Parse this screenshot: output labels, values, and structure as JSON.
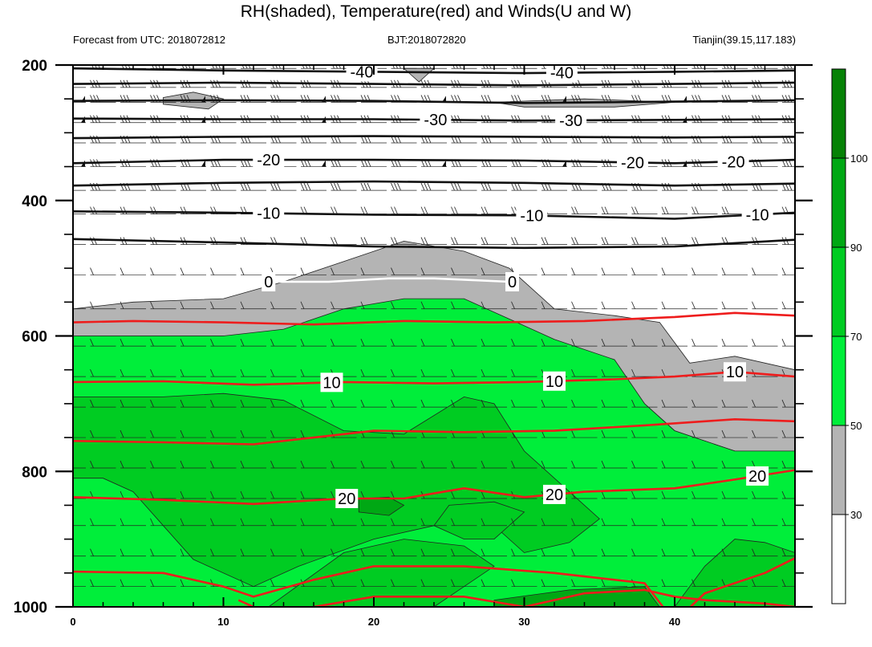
{
  "chart_data": {
    "type": "heatmap",
    "title": "RH(shaded), Temperature(red) and Winds(U and W)",
    "left_subtitle": "Forecast from UTC: 2018072812",
    "center_subtitle": "BJT:2018072820",
    "right_subtitle": "Tianjin(39.15,117.183)",
    "xlabel": "",
    "ylabel": "",
    "x_ticks": [
      0,
      10,
      20,
      30,
      40
    ],
    "xlim": [
      0,
      48
    ],
    "y_ticks": [
      200,
      400,
      600,
      800,
      1000
    ],
    "ylim": [
      200,
      1000
    ],
    "y_inverted": true,
    "colorbar": {
      "levels": [
        30,
        50,
        70,
        90,
        100
      ],
      "colors": [
        "#ffffff",
        "#b4b4b4",
        "#00ee3a",
        "#00cc22",
        "#00a814",
        "#068206"
      ]
    },
    "rh_regions": [
      {
        "level": "gray",
        "points": [
          [
            0,
            560
          ],
          [
            4,
            550
          ],
          [
            10,
            545
          ],
          [
            14,
            520
          ],
          [
            18,
            490
          ],
          [
            22,
            460
          ],
          [
            26,
            475
          ],
          [
            29,
            500
          ],
          [
            32,
            560
          ],
          [
            36,
            570
          ],
          [
            39,
            580
          ],
          [
            41,
            640
          ],
          [
            44,
            630
          ],
          [
            48,
            650
          ],
          [
            48,
            770
          ],
          [
            44,
            770
          ],
          [
            40,
            740
          ],
          [
            38,
            700
          ],
          [
            36,
            640
          ],
          [
            32,
            610
          ],
          [
            28,
            600
          ],
          [
            20,
            600
          ],
          [
            10,
            600
          ],
          [
            0,
            600
          ]
        ]
      },
      {
        "level": "gray",
        "points": [
          [
            6,
            248
          ],
          [
            8,
            240
          ],
          [
            10,
            250
          ],
          [
            9,
            265
          ],
          [
            6,
            258
          ]
        ]
      },
      {
        "level": "gray",
        "points": [
          [
            22,
            205
          ],
          [
            24,
            205
          ],
          [
            23,
            225
          ]
        ]
      },
      {
        "level": "gray",
        "points": [
          [
            28,
            255
          ],
          [
            34,
            250
          ],
          [
            40,
            255
          ],
          [
            36,
            262
          ],
          [
            30,
            262
          ]
        ]
      },
      {
        "level": "green1",
        "points": [
          [
            0,
            600
          ],
          [
            10,
            600
          ],
          [
            14,
            590
          ],
          [
            18,
            560
          ],
          [
            22,
            545
          ],
          [
            26,
            545
          ],
          [
            29,
            575
          ],
          [
            32,
            605
          ],
          [
            36,
            635
          ],
          [
            38,
            700
          ],
          [
            40,
            740
          ],
          [
            44,
            770
          ],
          [
            48,
            770
          ],
          [
            48,
            1000
          ],
          [
            0,
            1000
          ]
        ]
      },
      {
        "level": "green2",
        "points": [
          [
            0,
            690
          ],
          [
            6,
            690
          ],
          [
            10,
            685
          ],
          [
            14,
            695
          ],
          [
            18,
            740
          ],
          [
            22,
            745
          ],
          [
            26,
            690
          ],
          [
            28,
            700
          ],
          [
            30,
            770
          ],
          [
            33,
            830
          ],
          [
            35,
            870
          ],
          [
            33,
            905
          ],
          [
            30,
            920
          ],
          [
            28,
            880
          ],
          [
            24,
            880
          ],
          [
            20,
            900
          ],
          [
            15,
            940
          ],
          [
            12,
            970
          ],
          [
            8,
            930
          ],
          [
            6,
            880
          ],
          [
            4,
            830
          ],
          [
            2,
            810
          ],
          [
            0,
            810
          ]
        ]
      },
      {
        "level": "green2",
        "points": [
          [
            13,
            1000
          ],
          [
            18,
            920
          ],
          [
            22,
            900
          ],
          [
            26,
            910
          ],
          [
            28,
            940
          ],
          [
            26,
            970
          ],
          [
            24,
            1000
          ]
        ]
      },
      {
        "level": "green2",
        "points": [
          [
            40,
            1000
          ],
          [
            42,
            940
          ],
          [
            44,
            900
          ],
          [
            46,
            905
          ],
          [
            48,
            920
          ],
          [
            48,
            1000
          ]
        ]
      },
      {
        "level": "green2",
        "points": [
          [
            24,
            880
          ],
          [
            25,
            850
          ],
          [
            28,
            845
          ],
          [
            30,
            860
          ],
          [
            28,
            900
          ],
          [
            26,
            900
          ]
        ]
      },
      {
        "level": "green3",
        "points": [
          [
            19,
            840
          ],
          [
            21,
            838
          ],
          [
            22,
            850
          ],
          [
            21,
            865
          ],
          [
            19,
            860
          ]
        ]
      },
      {
        "level": "green3",
        "points": [
          [
            28,
            990
          ],
          [
            33,
            975
          ],
          [
            38,
            970
          ],
          [
            39,
            1000
          ],
          [
            28,
            1000
          ]
        ]
      }
    ],
    "temperature_isotherms": [
      {
        "color": "black",
        "label": "-40",
        "label_x": [
          19.2,
          32.5
        ],
        "points": [
          [
            0,
            205
          ],
          [
            10,
            208
          ],
          [
            20,
            210
          ],
          [
            30,
            212
          ],
          [
            40,
            210
          ],
          [
            48,
            208
          ]
        ]
      },
      {
        "color": "black",
        "label": "",
        "label_x": [],
        "points": [
          [
            0,
            228
          ],
          [
            10,
            226
          ],
          [
            20,
            228
          ],
          [
            30,
            230
          ],
          [
            40,
            228
          ],
          [
            48,
            226
          ]
        ]
      },
      {
        "color": "black",
        "label": "",
        "label_x": [],
        "points": [
          [
            0,
            253
          ],
          [
            10,
            252
          ],
          [
            20,
            253
          ],
          [
            30,
            256
          ],
          [
            40,
            254
          ],
          [
            48,
            252
          ]
        ]
      },
      {
        "color": "black",
        "label": "-30",
        "label_x": [
          24.1,
          33.1
        ],
        "points": [
          [
            0,
            279
          ],
          [
            10,
            280
          ],
          [
            20,
            280
          ],
          [
            30,
            282
          ],
          [
            40,
            281
          ],
          [
            48,
            280
          ]
        ]
      },
      {
        "color": "black",
        "label": "",
        "label_x": [],
        "points": [
          [
            0,
            308
          ],
          [
            10,
            306
          ],
          [
            20,
            305
          ],
          [
            30,
            306
          ],
          [
            40,
            307
          ],
          [
            48,
            306
          ]
        ]
      },
      {
        "color": "black",
        "label": "-20",
        "label_x": [
          13.0,
          37.2,
          43.9
        ],
        "points": [
          [
            0,
            345
          ],
          [
            10,
            340
          ],
          [
            20,
            340
          ],
          [
            30,
            341
          ],
          [
            40,
            345
          ],
          [
            48,
            340
          ]
        ]
      },
      {
        "color": "black",
        "label": "",
        "label_x": [],
        "points": [
          [
            0,
            378
          ],
          [
            10,
            374
          ],
          [
            20,
            372
          ],
          [
            30,
            374
          ],
          [
            40,
            378
          ],
          [
            48,
            375
          ]
        ]
      },
      {
        "color": "black",
        "label": "-10",
        "label_x": [
          13.0,
          30.5,
          45.5
        ],
        "points": [
          [
            0,
            416
          ],
          [
            10,
            418
          ],
          [
            20,
            421
          ],
          [
            30,
            422
          ],
          [
            40,
            427
          ],
          [
            48,
            418
          ]
        ]
      },
      {
        "color": "black",
        "label": "",
        "label_x": [],
        "points": [
          [
            0,
            457
          ],
          [
            10,
            462
          ],
          [
            20,
            468
          ],
          [
            30,
            470
          ],
          [
            40,
            468
          ],
          [
            48,
            458
          ]
        ]
      },
      {
        "color": "white",
        "label": "0",
        "label_x": [
          13.0,
          29.2
        ],
        "points": [
          [
            13,
            520
          ],
          [
            17,
            520
          ],
          [
            21,
            515
          ],
          [
            24,
            515
          ],
          [
            29,
            520
          ]
        ]
      },
      {
        "color": "red",
        "label": "",
        "label_x": [],
        "points": [
          [
            0,
            580
          ],
          [
            4,
            578
          ],
          [
            10,
            580
          ],
          [
            16,
            583
          ],
          [
            22,
            578
          ],
          [
            28,
            580
          ],
          [
            34,
            578
          ],
          [
            40,
            572
          ],
          [
            44,
            566
          ],
          [
            48,
            570
          ]
        ]
      },
      {
        "color": "red",
        "label": "10",
        "label_x": [
          17.2,
          32.0,
          44.0
        ],
        "points": [
          [
            0,
            668
          ],
          [
            6,
            667
          ],
          [
            12,
            672
          ],
          [
            18,
            668
          ],
          [
            24,
            670
          ],
          [
            30,
            668
          ],
          [
            36,
            664
          ],
          [
            40,
            660
          ],
          [
            44,
            653
          ],
          [
            48,
            660
          ]
        ]
      },
      {
        "color": "red",
        "label": "",
        "label_x": [],
        "points": [
          [
            0,
            755
          ],
          [
            6,
            757
          ],
          [
            12,
            760
          ],
          [
            16,
            750
          ],
          [
            20,
            740
          ],
          [
            26,
            742
          ],
          [
            32,
            740
          ],
          [
            38,
            732
          ],
          [
            44,
            723
          ],
          [
            48,
            726
          ]
        ]
      },
      {
        "color": "red",
        "label": "20",
        "label_x": [
          18.2,
          32.0,
          45.5
        ],
        "points": [
          [
            0,
            838
          ],
          [
            6,
            842
          ],
          [
            12,
            848
          ],
          [
            18,
            840
          ],
          [
            22,
            840
          ],
          [
            26,
            825
          ],
          [
            30,
            838
          ],
          [
            34,
            830
          ],
          [
            40,
            825
          ],
          [
            44,
            812
          ],
          [
            48,
            798
          ]
        ]
      },
      {
        "color": "red",
        "label": "",
        "label_x": [],
        "points": [
          [
            0,
            948
          ],
          [
            6,
            950
          ],
          [
            10,
            970
          ],
          [
            12,
            985
          ],
          [
            16,
            960
          ],
          [
            20,
            940
          ],
          [
            26,
            940
          ],
          [
            32,
            950
          ],
          [
            38,
            965
          ],
          [
            40,
            1022
          ],
          [
            42,
            980
          ],
          [
            46,
            950
          ],
          [
            48,
            928
          ]
        ]
      },
      {
        "color": "red",
        "label": "",
        "label_x": [],
        "points": [
          [
            9,
            1000
          ],
          [
            12,
            1000
          ],
          [
            11,
            990
          ]
        ]
      },
      {
        "color": "red",
        "label": "",
        "label_x": [],
        "points": [
          [
            14,
            1010
          ],
          [
            16,
            1000
          ],
          [
            20,
            985
          ],
          [
            26,
            985
          ],
          [
            30,
            1000
          ],
          [
            34,
            980
          ],
          [
            38,
            975
          ],
          [
            40,
            985
          ],
          [
            42,
            990
          ],
          [
            46,
            995
          ],
          [
            48,
            1000
          ]
        ]
      }
    ],
    "winds": {
      "x_spacing": 2,
      "rows": [
        {
          "p": 205,
          "barbs": 3,
          "flag": false
        },
        {
          "p": 233,
          "barbs": 3,
          "flag": false
        },
        {
          "p": 255,
          "barbs": 3,
          "flag": true
        },
        {
          "p": 285,
          "barbs": 3,
          "flag": true
        },
        {
          "p": 315,
          "barbs": 3,
          "flag": false
        },
        {
          "p": 350,
          "barbs": 3,
          "flag": true
        },
        {
          "p": 385,
          "barbs": 3,
          "flag": false
        },
        {
          "p": 420,
          "barbs": 2,
          "flag": false
        },
        {
          "p": 465,
          "barbs": 2,
          "flag": false
        },
        {
          "p": 510,
          "barbs": 1,
          "flag": false
        },
        {
          "p": 560,
          "barbs": 1,
          "flag": false
        },
        {
          "p": 615,
          "barbs": 1,
          "flag": false
        },
        {
          "p": 660,
          "barbs": 1,
          "flag": false
        },
        {
          "p": 705,
          "barbs": 1,
          "flag": false
        },
        {
          "p": 750,
          "barbs": 1,
          "flag": false
        },
        {
          "p": 795,
          "barbs": 1,
          "flag": false
        },
        {
          "p": 840,
          "barbs": 1,
          "flag": false
        },
        {
          "p": 880,
          "barbs": 1,
          "flag": false
        },
        {
          "p": 925,
          "barbs": 1,
          "flag": false
        },
        {
          "p": 970,
          "barbs": 1,
          "flag": false
        }
      ]
    }
  }
}
